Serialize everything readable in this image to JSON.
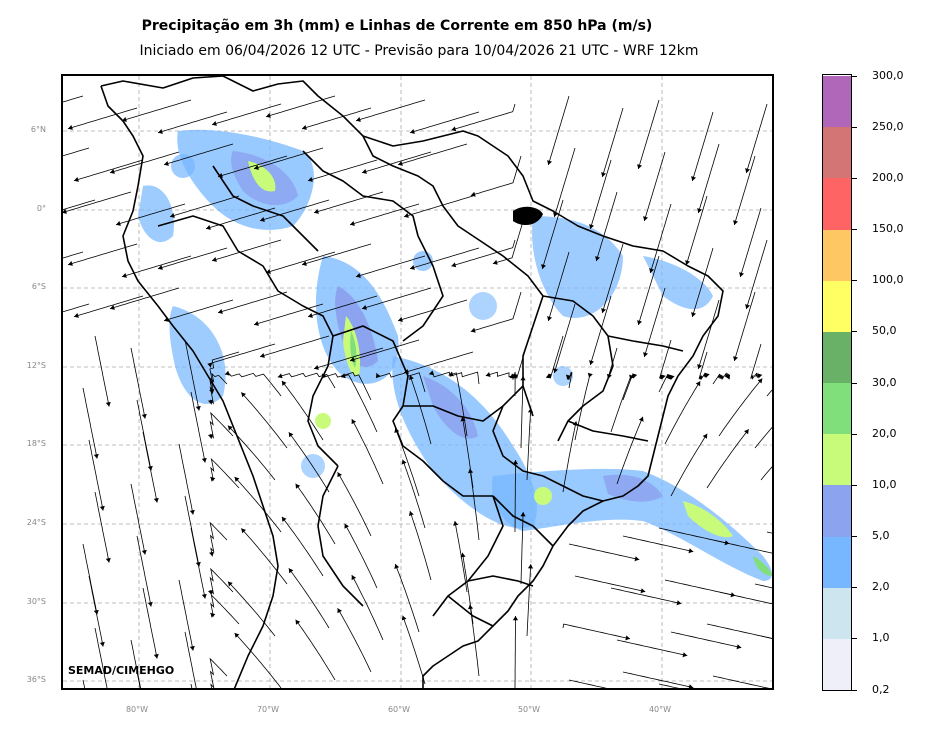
{
  "title": "Precipitação em 3h (mm) e Linhas de Corrente em 850 hPa (m/s)",
  "subtitle": "Iniciado em 06/04/2026 12 UTC - Previsão para 10/04/2026 21 UTC - WRF 12km",
  "credit": "SEMAD/CIMEHGO",
  "lat_labels": [
    "6°N",
    "0°",
    "6°S",
    "12°S",
    "18°S",
    "24°S",
    "30°S",
    "36°S"
  ],
  "lon_labels": [
    "80°W",
    "70°W",
    "60°W",
    "50°W",
    "40°W"
  ],
  "colorbar": {
    "labels": [
      "0,2",
      "1,0",
      "2,0",
      "5,0",
      "10,0",
      "20,0",
      "30,0",
      "50,0",
      "100,0",
      "150,0",
      "200,0",
      "250,0",
      "300,0"
    ],
    "colors": [
      "#efeff9",
      "#cde5ef",
      "#76b7ff",
      "#8ca3ef",
      "#c9fb7a",
      "#80de7b",
      "#68b166",
      "#ffff64",
      "#ffc764",
      "#ff6464",
      "#d37575",
      "#b066b9"
    ]
  },
  "colors": {
    "streamline": "#000000",
    "border": "#000000",
    "grid": "#aaaaaa",
    "precip_light": "#76b7ff",
    "precip_mid": "#8ca3ef",
    "precip_heavy": "#c9fb7a",
    "precip_extreme": "#80de7b"
  }
}
